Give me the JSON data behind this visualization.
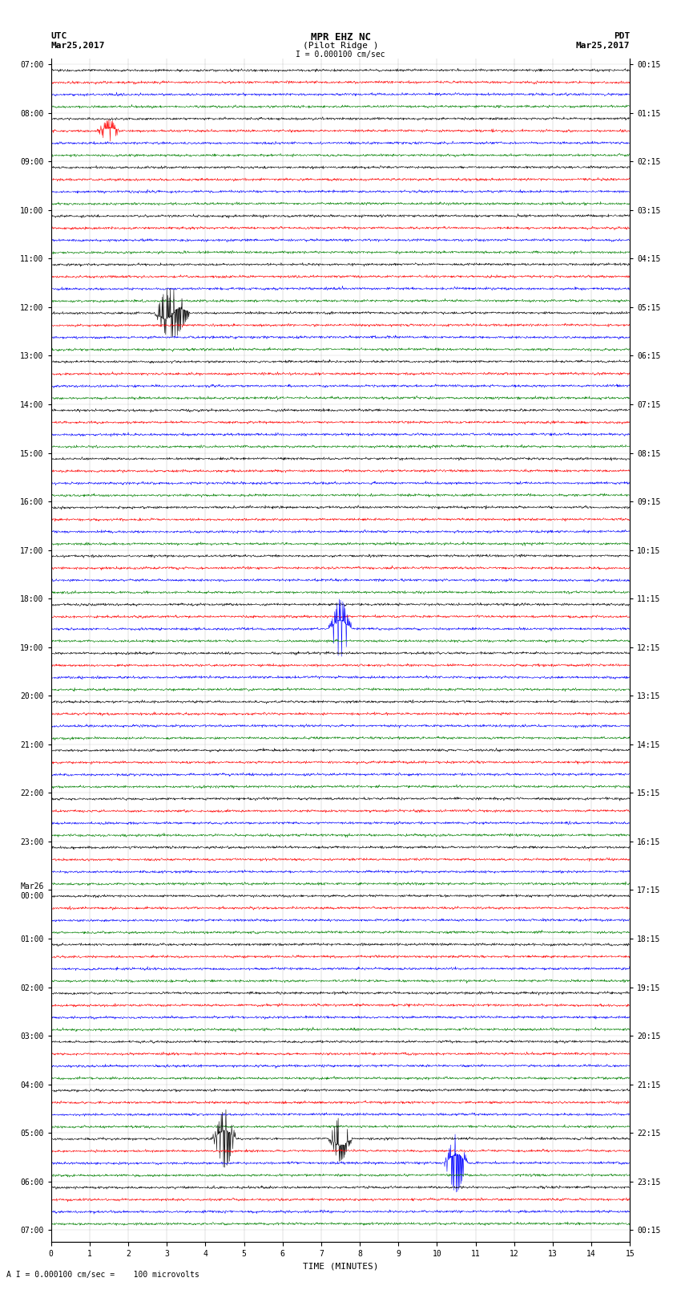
{
  "title_line1": "MPR EHZ NC",
  "title_line2": "(Pilot Ridge )",
  "scale_label": "I = 0.000100 cm/sec",
  "label_left_top": "UTC",
  "label_left_date": "Mar25,2017",
  "label_right_top": "PDT",
  "label_right_date": "Mar25,2017",
  "footer": "A I = 0.000100 cm/sec =    100 microvolts",
  "xlabel": "TIME (MINUTES)",
  "bg_color": "#ffffff",
  "line_colors": [
    "black",
    "red",
    "blue",
    "green"
  ],
  "utc_labels": [
    "07:00",
    "",
    "08:00",
    "",
    "09:00",
    "",
    "10:00",
    "",
    "11:00",
    "",
    "12:00",
    "",
    "13:00",
    "",
    "14:00",
    "",
    "15:00",
    "",
    "16:00",
    "",
    "17:00",
    "",
    "18:00",
    "",
    "19:00",
    "",
    "20:00",
    "",
    "21:00",
    "",
    "22:00",
    "",
    "23:00",
    "",
    "Mar26\n00:00",
    "",
    "01:00",
    "",
    "02:00",
    "",
    "03:00",
    "",
    "04:00",
    "",
    "05:00",
    "",
    "06:00",
    ""
  ],
  "pdt_labels": [
    "00:15",
    "",
    "01:15",
    "",
    "02:15",
    "",
    "03:15",
    "",
    "04:15",
    "",
    "05:15",
    "",
    "06:15",
    "",
    "07:15",
    "",
    "08:15",
    "",
    "09:15",
    "",
    "10:15",
    "",
    "11:15",
    "",
    "12:15",
    "",
    "13:15",
    "",
    "14:15",
    "",
    "15:15",
    "",
    "16:15",
    "",
    "17:15",
    "",
    "18:15",
    "",
    "19:15",
    "",
    "20:15",
    "",
    "21:15",
    "",
    "22:15",
    "",
    "23:15",
    ""
  ],
  "num_rows": 48,
  "minutes_per_row": 15,
  "samples_per_minute": 100,
  "amplitude": 0.3,
  "grid_color": "#888888",
  "tick_color": "#000000"
}
